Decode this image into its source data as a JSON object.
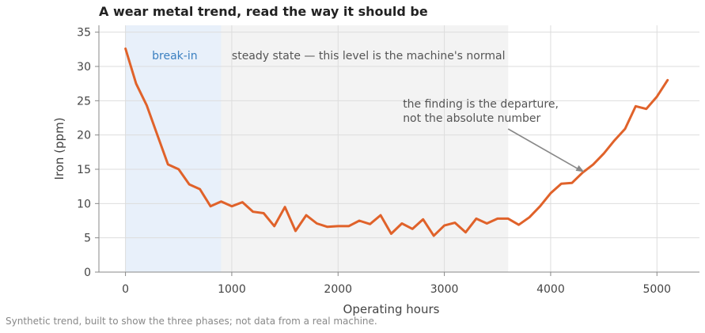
{
  "title": "A wear metal trend, read the way it should be",
  "footnote": "Synthetic trend, built to show the three phases; not data from a real machine.",
  "colors": {
    "line": "#e0622a",
    "breakin_band": "#e8f0fa",
    "steady_band": "#f3f3f3",
    "breakin_text": "#3a7fc0",
    "steady_text": "#555555",
    "grid": "#dddddd",
    "axis": "#888888",
    "arrow": "#888888"
  },
  "chart_data": {
    "type": "line",
    "title": "A wear metal trend, read the way it should be",
    "xlabel": "Operating hours",
    "ylabel": "Iron (ppm)",
    "xlim": [
      -250,
      5400
    ],
    "ylim": [
      0,
      36
    ],
    "xticks": [
      0,
      1000,
      2000,
      3000,
      4000,
      5000
    ],
    "yticks": [
      0,
      5,
      10,
      15,
      20,
      25,
      30,
      35
    ],
    "grid": true,
    "x": [
      0,
      100,
      200,
      300,
      400,
      500,
      600,
      700,
      800,
      900,
      1000,
      1100,
      1200,
      1300,
      1400,
      1500,
      1600,
      1700,
      1800,
      1900,
      2000,
      2100,
      2200,
      2300,
      2400,
      2500,
      2600,
      2700,
      2800,
      2900,
      3000,
      3100,
      3200,
      3300,
      3400,
      3500,
      3600,
      3700,
      3800,
      3900,
      4000,
      4100,
      4200,
      4300,
      4400,
      4500,
      4600,
      4700,
      4800,
      4900,
      5000,
      5100
    ],
    "y": [
      32.6,
      27.5,
      24.3,
      20.0,
      15.7,
      15.0,
      12.8,
      12.1,
      9.6,
      10.3,
      9.6,
      10.2,
      8.8,
      8.6,
      6.7,
      9.5,
      6.0,
      8.3,
      7.1,
      6.6,
      6.7,
      6.7,
      7.5,
      7.0,
      8.3,
      5.6,
      7.1,
      6.3,
      7.7,
      5.3,
      6.8,
      7.2,
      5.8,
      7.8,
      7.1,
      7.8,
      7.8,
      6.9,
      8.0,
      9.6,
      11.5,
      12.9,
      13.0,
      14.5,
      15.7,
      17.3,
      19.2,
      20.9,
      24.2,
      23.8,
      25.6,
      28.0
    ],
    "regions": [
      {
        "label": "break-in",
        "x_start": 0,
        "x_end": 900
      },
      {
        "label": "steady state — this level is the machine's normal",
        "x_start": 900,
        "x_end": 3600
      }
    ],
    "annotation": {
      "lines": [
        "the finding is the departure,",
        "not the absolute number"
      ],
      "point_x": 4300,
      "point_y": 14.5
    }
  }
}
